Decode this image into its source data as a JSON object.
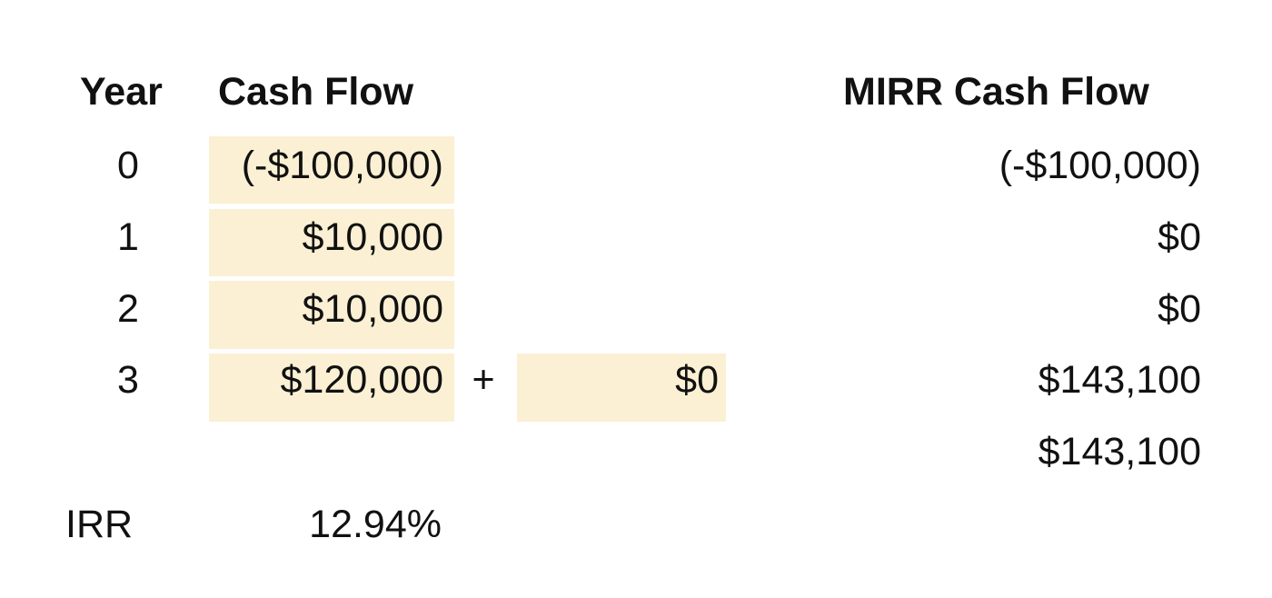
{
  "headers": {
    "year": "Year",
    "cash_flow": "Cash Flow",
    "mirr_cash_flow": "MIRR Cash Flow"
  },
  "rows": [
    {
      "year": "0",
      "cash_flow": "(-$100,000)",
      "mirr": "(-$100,000)"
    },
    {
      "year": "1",
      "cash_flow": "$10,000",
      "mirr": "$0"
    },
    {
      "year": "2",
      "cash_flow": "$10,000",
      "mirr": "$0"
    },
    {
      "year": "3",
      "cash_flow": "$120,000",
      "mirr": "$143,100"
    }
  ],
  "reinvest": {
    "operator": "+",
    "value": "$0"
  },
  "mirr_total": "$143,100",
  "irr": {
    "label": "IRR",
    "value": "12.94%"
  },
  "colors": {
    "highlight": "#fbf0d3",
    "text": "#111111"
  }
}
